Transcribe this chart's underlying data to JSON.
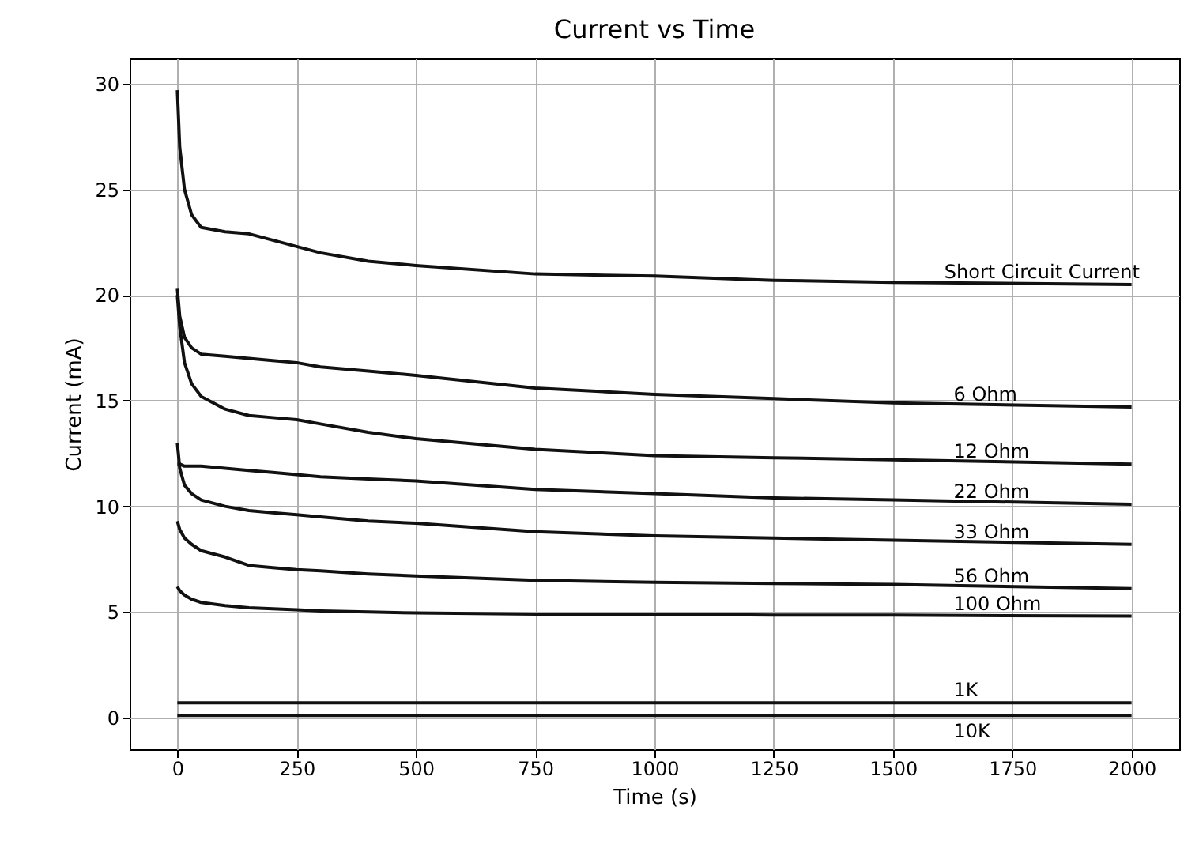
{
  "chart_data": {
    "type": "line",
    "title": "Current vs Time",
    "xlabel": "Time (s)",
    "ylabel": "Current (mA)",
    "xlim": [
      -100,
      2100
    ],
    "xticks": [
      0,
      250,
      500,
      750,
      1000,
      1250,
      1500,
      1750,
      2000
    ],
    "ylim": [
      -1.5,
      31.2
    ],
    "yticks": [
      0,
      5,
      10,
      15,
      20,
      25,
      30
    ],
    "grid": true,
    "legend": false,
    "x": [
      0,
      5,
      15,
      30,
      50,
      100,
      150,
      200,
      250,
      300,
      400,
      500,
      750,
      1000,
      1250,
      1500,
      2000
    ],
    "series": [
      {
        "name": "Short Circuit Current",
        "color": "#111111",
        "values": [
          29.7,
          27,
          25,
          23.8,
          23.2,
          23.0,
          22.9,
          22.6,
          22.3,
          22.0,
          21.6,
          21.4,
          21.0,
          20.9,
          20.7,
          20.6,
          20.5
        ]
      },
      {
        "name": "6 Ohm",
        "color": "#111111",
        "values": [
          20.3,
          19,
          18,
          17.5,
          17.2,
          17.1,
          17.0,
          16.9,
          16.8,
          16.6,
          16.4,
          16.2,
          15.6,
          15.3,
          15.1,
          14.9,
          14.7
        ]
      },
      {
        "name": "12 Ohm",
        "color": "#111111",
        "values": [
          20.0,
          18.5,
          16.8,
          15.8,
          15.2,
          14.6,
          14.3,
          14.2,
          14.1,
          13.9,
          13.5,
          13.2,
          12.7,
          12.4,
          12.3,
          12.2,
          12.0
        ]
      },
      {
        "name": "22 Ohm",
        "color": "#111111",
        "values": [
          12.0,
          12.0,
          11.9,
          11.9,
          11.9,
          11.8,
          11.7,
          11.6,
          11.5,
          11.4,
          11.3,
          11.2,
          10.8,
          10.6,
          10.4,
          10.3,
          10.1
        ]
      },
      {
        "name": "33 Ohm",
        "color": "#111111",
        "values": [
          13.0,
          11.8,
          11.0,
          10.6,
          10.3,
          10.0,
          9.8,
          9.7,
          9.6,
          9.5,
          9.3,
          9.2,
          8.8,
          8.6,
          8.5,
          8.4,
          8.2
        ]
      },
      {
        "name": "56 Ohm",
        "color": "#111111",
        "values": [
          9.3,
          8.9,
          8.5,
          8.2,
          7.9,
          7.6,
          7.2,
          7.1,
          7.0,
          6.95,
          6.8,
          6.7,
          6.5,
          6.4,
          6.35,
          6.3,
          6.1
        ]
      },
      {
        "name": "100 Ohm",
        "color": "#111111",
        "values": [
          6.2,
          6.0,
          5.8,
          5.6,
          5.45,
          5.3,
          5.2,
          5.15,
          5.1,
          5.05,
          5.0,
          4.95,
          4.9,
          4.9,
          4.85,
          4.85,
          4.8
        ]
      },
      {
        "name": "1K",
        "color": "#111111",
        "values": [
          0.7,
          0.7,
          0.7,
          0.7,
          0.7,
          0.7,
          0.7,
          0.7,
          0.7,
          0.7,
          0.7,
          0.7,
          0.7,
          0.7,
          0.7,
          0.7,
          0.7
        ]
      },
      {
        "name": "10K",
        "color": "#111111",
        "values": [
          0.1,
          0.1,
          0.1,
          0.1,
          0.1,
          0.1,
          0.1,
          0.1,
          0.1,
          0.1,
          0.1,
          0.1,
          0.1,
          0.1,
          0.1,
          0.1,
          0.1
        ]
      }
    ]
  }
}
